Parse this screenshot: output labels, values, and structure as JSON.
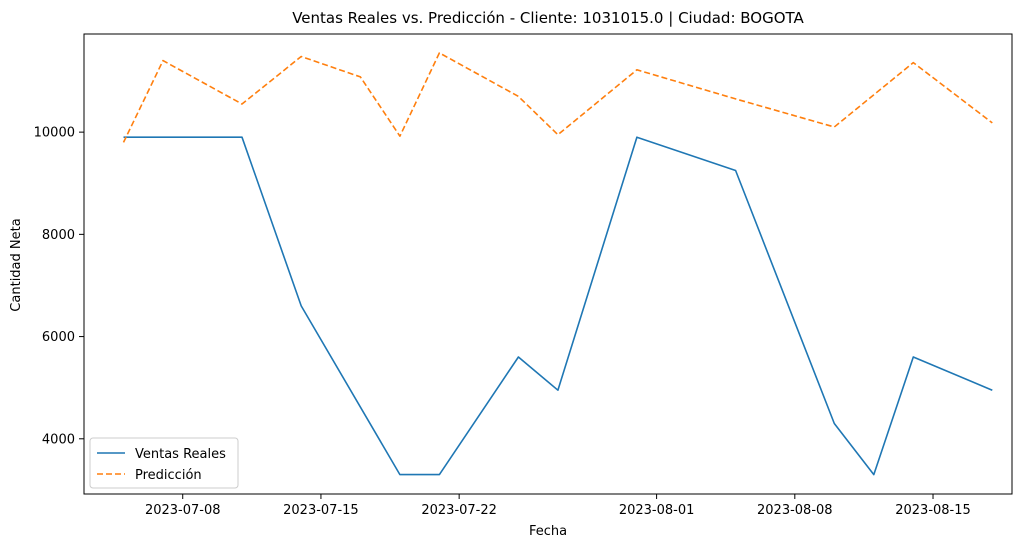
{
  "chart_data": {
    "type": "line",
    "title": "Ventas Reales vs. Predicción - Cliente: 1031015.0 | Ciudad: BOGOTA",
    "xlabel": "Fecha",
    "ylabel": "Cantidad Neta",
    "x_tick_labels": [
      "2023-07-08",
      "2023-07-15",
      "2023-07-22",
      "2023-08-01",
      "2023-08-08",
      "2023-08-15"
    ],
    "y_tick_labels": [
      "4000",
      "6000",
      "8000",
      "10000"
    ],
    "y_ticks": [
      4000,
      6000,
      8000,
      10000
    ],
    "xlim": [
      "2023-07-03",
      "2023-08-19"
    ],
    "ylim": [
      2920,
      11920
    ],
    "grid": false,
    "legend_position": "lower-left",
    "series": [
      {
        "name": "Ventas Reales",
        "color": "#1f77b4",
        "style": "solid",
        "x": [
          "2023-07-05",
          "2023-07-11",
          "2023-07-14",
          "2023-07-19",
          "2023-07-21",
          "2023-07-25",
          "2023-07-27",
          "2023-07-31",
          "2023-08-05",
          "2023-08-10",
          "2023-08-12",
          "2023-08-14",
          "2023-08-18"
        ],
        "values": [
          9900,
          9900,
          6600,
          3300,
          3300,
          5600,
          4950,
          9900,
          9250,
          4300,
          3300,
          5600,
          4950
        ]
      },
      {
        "name": "Predicción",
        "color": "#ff7f0e",
        "style": "dashed",
        "x": [
          "2023-07-05",
          "2023-07-07",
          "2023-07-11",
          "2023-07-14",
          "2023-07-17",
          "2023-07-19",
          "2023-07-21",
          "2023-07-25",
          "2023-07-27",
          "2023-07-31",
          "2023-08-05",
          "2023-08-10",
          "2023-08-14",
          "2023-08-18"
        ],
        "values": [
          9800,
          11400,
          10550,
          11480,
          11080,
          9920,
          11550,
          10700,
          9950,
          11220,
          10650,
          10100,
          11360,
          10180
        ]
      }
    ]
  }
}
